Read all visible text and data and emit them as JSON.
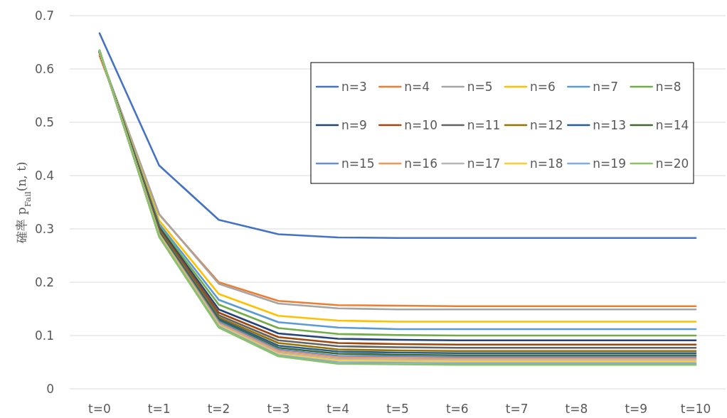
{
  "chart_data": {
    "type": "line",
    "ylabel": "確率 p$_{Fail}$(n, t)",
    "categories": [
      "t=0",
      "t=1",
      "t=2",
      "t=3",
      "t=4",
      "t=5",
      "t=6",
      "t=7",
      "t=8",
      "t=9",
      "t=10"
    ],
    "ylim": [
      0,
      0.7
    ],
    "yticks": [
      0,
      0.1,
      0.2,
      0.3,
      0.4,
      0.5,
      0.6,
      0.7
    ],
    "grid": "y",
    "legend": "top right",
    "marker": "none",
    "line_style": "solid",
    "series": [
      {
        "name": "n=3",
        "color": "#4472c4",
        "values": [
          0.667,
          0.419,
          0.317,
          0.29,
          0.284,
          0.283,
          0.283,
          0.283,
          0.283,
          0.283,
          0.283
        ]
      },
      {
        "name": "n=4",
        "color": "#ed7d31",
        "values": [
          0.625,
          0.327,
          0.2,
          0.165,
          0.157,
          0.156,
          0.155,
          0.155,
          0.155,
          0.155,
          0.155
        ]
      },
      {
        "name": "n=5",
        "color": "#a5a5a5",
        "values": [
          0.63,
          0.328,
          0.197,
          0.16,
          0.151,
          0.149,
          0.149,
          0.149,
          0.149,
          0.149,
          0.149
        ]
      },
      {
        "name": "n=6",
        "color": "#ffc000",
        "values": [
          0.63,
          0.316,
          0.178,
          0.137,
          0.128,
          0.126,
          0.126,
          0.126,
          0.126,
          0.126,
          0.126
        ]
      },
      {
        "name": "n=7",
        "color": "#5b9bd5",
        "values": [
          0.631,
          0.31,
          0.167,
          0.125,
          0.115,
          0.112,
          0.112,
          0.112,
          0.112,
          0.112,
          0.112
        ]
      },
      {
        "name": "n=8",
        "color": "#70ad47",
        "values": [
          0.631,
          0.306,
          0.158,
          0.114,
          0.103,
          0.101,
          0.1,
          0.1,
          0.1,
          0.1,
          0.1
        ]
      },
      {
        "name": "n=9",
        "color": "#264478",
        "values": [
          0.632,
          0.303,
          0.149,
          0.104,
          0.094,
          0.092,
          0.091,
          0.091,
          0.091,
          0.091,
          0.091
        ]
      },
      {
        "name": "n=10",
        "color": "#9e480e",
        "values": [
          0.632,
          0.3,
          0.143,
          0.097,
          0.086,
          0.084,
          0.083,
          0.083,
          0.083,
          0.083,
          0.083
        ]
      },
      {
        "name": "n=11",
        "color": "#636363",
        "values": [
          0.632,
          0.298,
          0.138,
          0.091,
          0.08,
          0.078,
          0.077,
          0.077,
          0.077,
          0.077,
          0.077
        ]
      },
      {
        "name": "n=12",
        "color": "#997300",
        "values": [
          0.632,
          0.296,
          0.134,
          0.086,
          0.074,
          0.072,
          0.071,
          0.071,
          0.071,
          0.071,
          0.071
        ]
      },
      {
        "name": "n=13",
        "color": "#255e91",
        "values": [
          0.633,
          0.294,
          0.131,
          0.081,
          0.07,
          0.068,
          0.067,
          0.067,
          0.067,
          0.067,
          0.067
        ]
      },
      {
        "name": "n=14",
        "color": "#43682b",
        "values": [
          0.633,
          0.293,
          0.128,
          0.077,
          0.066,
          0.064,
          0.063,
          0.063,
          0.063,
          0.063,
          0.063
        ]
      },
      {
        "name": "n=15",
        "color": "#698ed0",
        "values": [
          0.633,
          0.291,
          0.126,
          0.074,
          0.062,
          0.061,
          0.06,
          0.06,
          0.06,
          0.06,
          0.06
        ]
      },
      {
        "name": "n=16",
        "color": "#f1975a",
        "values": [
          0.634,
          0.29,
          0.123,
          0.071,
          0.059,
          0.058,
          0.057,
          0.057,
          0.057,
          0.057,
          0.057
        ]
      },
      {
        "name": "n=17",
        "color": "#b7b7b7",
        "values": [
          0.634,
          0.289,
          0.121,
          0.068,
          0.056,
          0.055,
          0.054,
          0.054,
          0.054,
          0.054,
          0.054
        ]
      },
      {
        "name": "n=18",
        "color": "#ffcd33",
        "values": [
          0.634,
          0.288,
          0.119,
          0.065,
          0.053,
          0.052,
          0.051,
          0.051,
          0.051,
          0.051,
          0.051
        ]
      },
      {
        "name": "n=19",
        "color": "#7cafdd",
        "values": [
          0.635,
          0.286,
          0.117,
          0.063,
          0.05,
          0.049,
          0.048,
          0.048,
          0.048,
          0.048,
          0.048
        ]
      },
      {
        "name": "n=20",
        "color": "#8cc168",
        "values": [
          0.635,
          0.285,
          0.115,
          0.061,
          0.047,
          0.046,
          0.045,
          0.045,
          0.045,
          0.045,
          0.045
        ]
      }
    ]
  }
}
